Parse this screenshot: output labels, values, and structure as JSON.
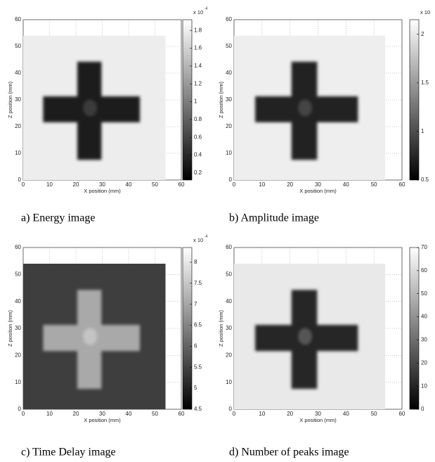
{
  "chart_data": [
    {
      "type": "heatmap",
      "caption": "a) Energy image",
      "xlabel": "X position (mm)",
      "ylabel": "Z position (mm)",
      "xlim": [
        0,
        60
      ],
      "ylim": [
        0,
        60
      ],
      "xticks": [
        0,
        10,
        20,
        30,
        40,
        50,
        60
      ],
      "yticks": [
        0,
        10,
        20,
        30,
        40,
        50,
        60
      ],
      "clim": [
        0.12,
        1.92
      ],
      "cticks": [
        0.2,
        0.4,
        0.6,
        0.8,
        1,
        1.2,
        1.4,
        1.6,
        1.8
      ],
      "cscale": "x 10",
      "cexponent": "-4",
      "grid": true
    },
    {
      "type": "heatmap",
      "caption": "b) Amplitude image",
      "xlabel": "X position (mm)",
      "ylabel": "Z position (mm)",
      "xlim": [
        0,
        60
      ],
      "ylim": [
        0,
        60
      ],
      "xticks": [
        0,
        10,
        20,
        30,
        40,
        50,
        60
      ],
      "yticks": [
        0,
        10,
        20,
        30,
        40,
        50,
        60
      ],
      "clim": [
        0.5,
        2.15
      ],
      "cticks": [
        0.5,
        1,
        1.5,
        2
      ],
      "cscale": "x 10",
      "grid": true
    },
    {
      "type": "heatmap",
      "caption": "c) Time Delay image",
      "xlabel": "X position (mm)",
      "ylabel": "Z position (mm)",
      "xlim": [
        0,
        60
      ],
      "ylim": [
        0,
        60
      ],
      "xticks": [
        0,
        10,
        20,
        30,
        40,
        50,
        60
      ],
      "yticks": [
        0,
        10,
        20,
        30,
        40,
        50,
        60
      ],
      "clim": [
        4.5,
        8.35
      ],
      "cticks": [
        4.5,
        5,
        5.5,
        6,
        6.5,
        7,
        7.5,
        8
      ],
      "cscale": "x 10",
      "cexponent": "-4",
      "grid": true
    },
    {
      "type": "heatmap",
      "caption": "d) Number of peaks image",
      "xlabel": "X position (mm)",
      "ylabel": "Z position (mm)",
      "xlim": [
        0,
        60
      ],
      "ylim": [
        0,
        60
      ],
      "xticks": [
        0,
        10,
        20,
        30,
        40,
        50,
        60
      ],
      "yticks": [
        0,
        10,
        20,
        30,
        40,
        50,
        60
      ],
      "clim": [
        0,
        70
      ],
      "cticks": [
        0,
        10,
        20,
        30,
        40,
        50,
        60,
        70
      ],
      "grid": true
    }
  ]
}
